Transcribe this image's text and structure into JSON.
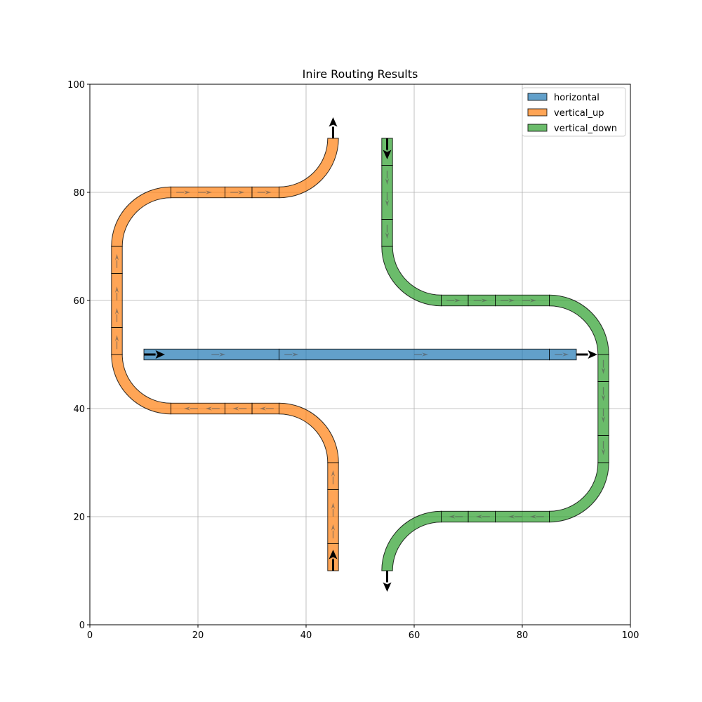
{
  "chart_data": {
    "type": "route-diagram",
    "title": "Inire Routing Results",
    "xlim": [
      0,
      100
    ],
    "ylim": [
      0,
      100
    ],
    "xticks": [
      0,
      20,
      40,
      60,
      80,
      100
    ],
    "yticks": [
      0,
      20,
      40,
      60,
      80,
      100
    ],
    "grid": true,
    "legend_placement": "top-right",
    "route_width": 2,
    "series": [
      {
        "name": "horizontal",
        "color": "#1f77b4",
        "start": [
          10,
          50
        ],
        "start_dir": [
          1,
          0
        ],
        "end": [
          90,
          50
        ],
        "end_dir": [
          1,
          0
        ],
        "segments": [
          {
            "type": "straight",
            "from": [
              10,
              50
            ],
            "to": [
              35,
              50
            ]
          },
          {
            "type": "straight",
            "from": [
              35,
              50
            ],
            "to": [
              85,
              50
            ]
          },
          {
            "type": "straight",
            "from": [
              85,
              50
            ],
            "to": [
              90,
              50
            ]
          }
        ]
      },
      {
        "name": "vertical_up",
        "color": "#ff7f0e",
        "start": [
          45,
          10
        ],
        "start_dir": [
          0,
          1
        ],
        "end": [
          45,
          90
        ],
        "end_dir": [
          0,
          1
        ],
        "segments": [
          {
            "type": "straight",
            "from": [
              45,
              10
            ],
            "to": [
              45,
              15
            ]
          },
          {
            "type": "straight",
            "from": [
              45,
              15
            ],
            "to": [
              45,
              25
            ]
          },
          {
            "type": "straight",
            "from": [
              45,
              25
            ],
            "to": [
              45,
              30
            ]
          },
          {
            "type": "arc",
            "center": [
              35,
              30
            ],
            "radius": 10,
            "start_angle": 0,
            "end_angle": 90
          },
          {
            "type": "straight",
            "from": [
              35,
              40
            ],
            "to": [
              30,
              40
            ]
          },
          {
            "type": "straight",
            "from": [
              30,
              40
            ],
            "to": [
              25,
              40
            ]
          },
          {
            "type": "straight",
            "from": [
              25,
              40
            ],
            "to": [
              15,
              40
            ]
          },
          {
            "type": "arc",
            "center": [
              15,
              50
            ],
            "radius": 10,
            "start_angle": 270,
            "end_angle": 180
          },
          {
            "type": "straight",
            "from": [
              5,
              50
            ],
            "to": [
              5,
              55
            ]
          },
          {
            "type": "straight",
            "from": [
              5,
              55
            ],
            "to": [
              5,
              65
            ]
          },
          {
            "type": "straight",
            "from": [
              5,
              65
            ],
            "to": [
              5,
              70
            ]
          },
          {
            "type": "arc",
            "center": [
              15,
              70
            ],
            "radius": 10,
            "start_angle": 180,
            "end_angle": 90
          },
          {
            "type": "straight",
            "from": [
              15,
              80
            ],
            "to": [
              25,
              80
            ]
          },
          {
            "type": "straight",
            "from": [
              25,
              80
            ],
            "to": [
              30,
              80
            ]
          },
          {
            "type": "straight",
            "from": [
              30,
              80
            ],
            "to": [
              35,
              80
            ]
          },
          {
            "type": "arc",
            "center": [
              35,
              90
            ],
            "radius": 10,
            "start_angle": 270,
            "end_angle": 360
          }
        ]
      },
      {
        "name": "vertical_down",
        "color": "#2ca02c",
        "start": [
          55,
          90
        ],
        "start_dir": [
          0,
          -1
        ],
        "end": [
          55,
          10
        ],
        "end_dir": [
          0,
          -1
        ],
        "segments": [
          {
            "type": "straight",
            "from": [
              55,
              90
            ],
            "to": [
              55,
              85
            ]
          },
          {
            "type": "straight",
            "from": [
              55,
              85
            ],
            "to": [
              55,
              75
            ]
          },
          {
            "type": "straight",
            "from": [
              55,
              75
            ],
            "to": [
              55,
              70
            ]
          },
          {
            "type": "arc",
            "center": [
              65,
              70
            ],
            "radius": 10,
            "start_angle": 180,
            "end_angle": 270
          },
          {
            "type": "straight",
            "from": [
              65,
              60
            ],
            "to": [
              70,
              60
            ]
          },
          {
            "type": "straight",
            "from": [
              70,
              60
            ],
            "to": [
              75,
              60
            ]
          },
          {
            "type": "straight",
            "from": [
              75,
              60
            ],
            "to": [
              85,
              60
            ]
          },
          {
            "type": "arc",
            "center": [
              85,
              50
            ],
            "radius": 10,
            "start_angle": 90,
            "end_angle": 0
          },
          {
            "type": "straight",
            "from": [
              95,
              50
            ],
            "to": [
              95,
              45
            ]
          },
          {
            "type": "straight",
            "from": [
              95,
              45
            ],
            "to": [
              95,
              35
            ]
          },
          {
            "type": "straight",
            "from": [
              95,
              35
            ],
            "to": [
              95,
              30
            ]
          },
          {
            "type": "arc",
            "center": [
              85,
              30
            ],
            "radius": 10,
            "start_angle": 0,
            "end_angle": -90
          },
          {
            "type": "straight",
            "from": [
              85,
              20
            ],
            "to": [
              75,
              20
            ]
          },
          {
            "type": "straight",
            "from": [
              75,
              20
            ],
            "to": [
              70,
              20
            ]
          },
          {
            "type": "straight",
            "from": [
              70,
              20
            ],
            "to": [
              65,
              20
            ]
          },
          {
            "type": "arc",
            "center": [
              65,
              10
            ],
            "radius": 10,
            "start_angle": 90,
            "end_angle": 180
          }
        ]
      }
    ]
  }
}
